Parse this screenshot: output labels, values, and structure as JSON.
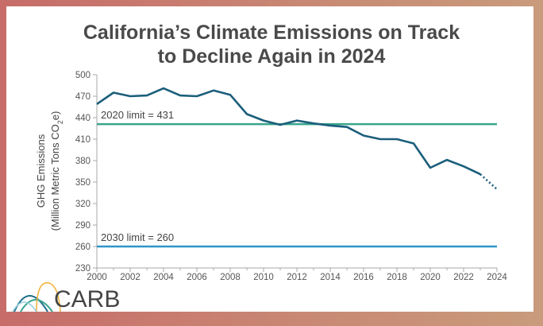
{
  "chart_data": {
    "type": "line",
    "title": "California’s Climate Emissions on Track to Decline Again in 2024",
    "title_lines": [
      "California’s Climate Emissions on Track",
      "to Decline Again in 2024"
    ],
    "ylabel_line1": "GHG Emissions",
    "ylabel_line2": "(Million Metric Tons CO",
    "ylabel_sub": "2",
    "ylabel_end": "e)",
    "xlim": [
      2000,
      2024
    ],
    "ylim": [
      230,
      500
    ],
    "x_ticks": [
      2000,
      2002,
      2004,
      2006,
      2008,
      2010,
      2012,
      2014,
      2016,
      2018,
      2020,
      2022,
      2024
    ],
    "y_ticks": [
      230,
      260,
      290,
      320,
      350,
      380,
      410,
      440,
      470,
      500
    ],
    "grid": false,
    "series": [
      {
        "color": "#1b5e7b",
        "x": [
          2000,
          2001,
          2002,
          2003,
          2004,
          2005,
          2006,
          2007,
          2008,
          2009,
          2010,
          2011,
          2012,
          2013,
          2014,
          2015,
          2016,
          2017,
          2018,
          2019,
          2020,
          2021,
          2022,
          2023,
          2024
        ],
        "values": [
          459,
          475,
          470,
          471,
          481,
          471,
          470,
          478,
          472,
          445,
          436,
          430,
          436,
          432,
          429,
          427,
          415,
          410,
          410,
          404,
          370,
          381,
          372,
          361,
          340
        ],
        "projected_from": 2023
      }
    ],
    "reference_lines": [
      {
        "label": "2020 limit = 431",
        "value": 431,
        "color": "#3aa58d"
      },
      {
        "label": "2030 limit = 260",
        "value": 260,
        "color": "#2f95c9"
      }
    ]
  },
  "logo": {
    "text": "CARB"
  }
}
